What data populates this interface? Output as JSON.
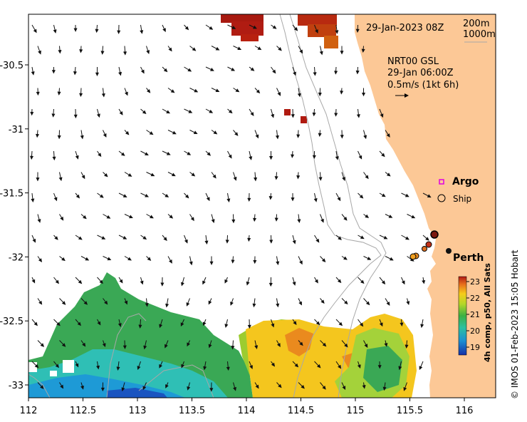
{
  "map": {
    "date_label": "29-Jan-2023 08Z",
    "contour_legend": [
      "200m",
      "1000m"
    ],
    "current_info": {
      "line1": "NRT00 GSL",
      "line2": "29-Jan 06:00Z",
      "line3": "0.5m/s (1kt 6h)"
    },
    "legend": {
      "argo": "Argo",
      "ship": "Ship"
    },
    "place": "Perth",
    "x_ticks": [
      "112",
      "112.5",
      "113",
      "113.5",
      "114",
      "114.5",
      "115",
      "115.5",
      "116"
    ],
    "y_ticks": [
      "-30.5",
      "-31",
      "-31.5",
      "-32",
      "-32.5",
      "-33"
    ],
    "colorbar": {
      "ticks": [
        "23",
        "22",
        "21",
        "20",
        "19"
      ],
      "label": "4h comp, p50, All Sats"
    },
    "credit": "© IMOS 01-Feb-2023 15:05 Hobart",
    "colors": {
      "land": "#fcc896",
      "coast_contour": "#a8a8a8"
    }
  }
}
